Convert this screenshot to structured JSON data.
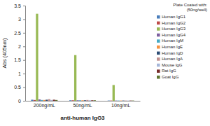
{
  "chart_data": {
    "type": "bar",
    "x_label": "anti-human IgG3",
    "y_label": "Abs (405nm)",
    "legend_title": [
      "Plate Coated with:",
      "(50ng/well)"
    ],
    "legend": "right",
    "categories": [
      "200ng/mL",
      "50ng/mL",
      "10ng/mL"
    ],
    "series": [
      {
        "name": "Human IgG1",
        "color": "#4a7ebb",
        "values": [
          0.04,
          0.02,
          0.01
        ]
      },
      {
        "name": "Human IgG2",
        "color": "#be4b48",
        "values": [
          0.03,
          0.02,
          0.01
        ]
      },
      {
        "name": "Human IgG3",
        "color": "#98b954",
        "values": [
          3.2,
          1.68,
          0.58
        ]
      },
      {
        "name": "Human IgG4",
        "color": "#7d60a0",
        "values": [
          0.05,
          0.02,
          0.01
        ]
      },
      {
        "name": "Human IgM",
        "color": "#46aac5",
        "values": [
          0.03,
          0.02,
          0.01
        ]
      },
      {
        "name": "Human IgE",
        "color": "#f69240",
        "values": [
          0.03,
          0.02,
          0.01
        ]
      },
      {
        "name": "Human IgD",
        "color": "#2c4d75",
        "values": [
          0.04,
          0.02,
          0.01
        ]
      },
      {
        "name": "Human IgA",
        "color": "#c0908f",
        "values": [
          0.06,
          0.03,
          0.01
        ]
      },
      {
        "name": "Mouse IgG",
        "color": "#a5b6d9",
        "values": [
          0.03,
          0.02,
          0.01
        ]
      },
      {
        "name": "Rat IgG",
        "color": "#772c2a",
        "values": [
          0.04,
          0.02,
          0.01
        ]
      },
      {
        "name": "Goat IgG",
        "color": "#5f7530",
        "values": [
          0.03,
          0.02,
          0.01
        ]
      }
    ],
    "ylim": [
      0,
      3.5
    ],
    "yticks": [
      0,
      0.5,
      1,
      1.5,
      2,
      2.5,
      3,
      3.5
    ]
  }
}
